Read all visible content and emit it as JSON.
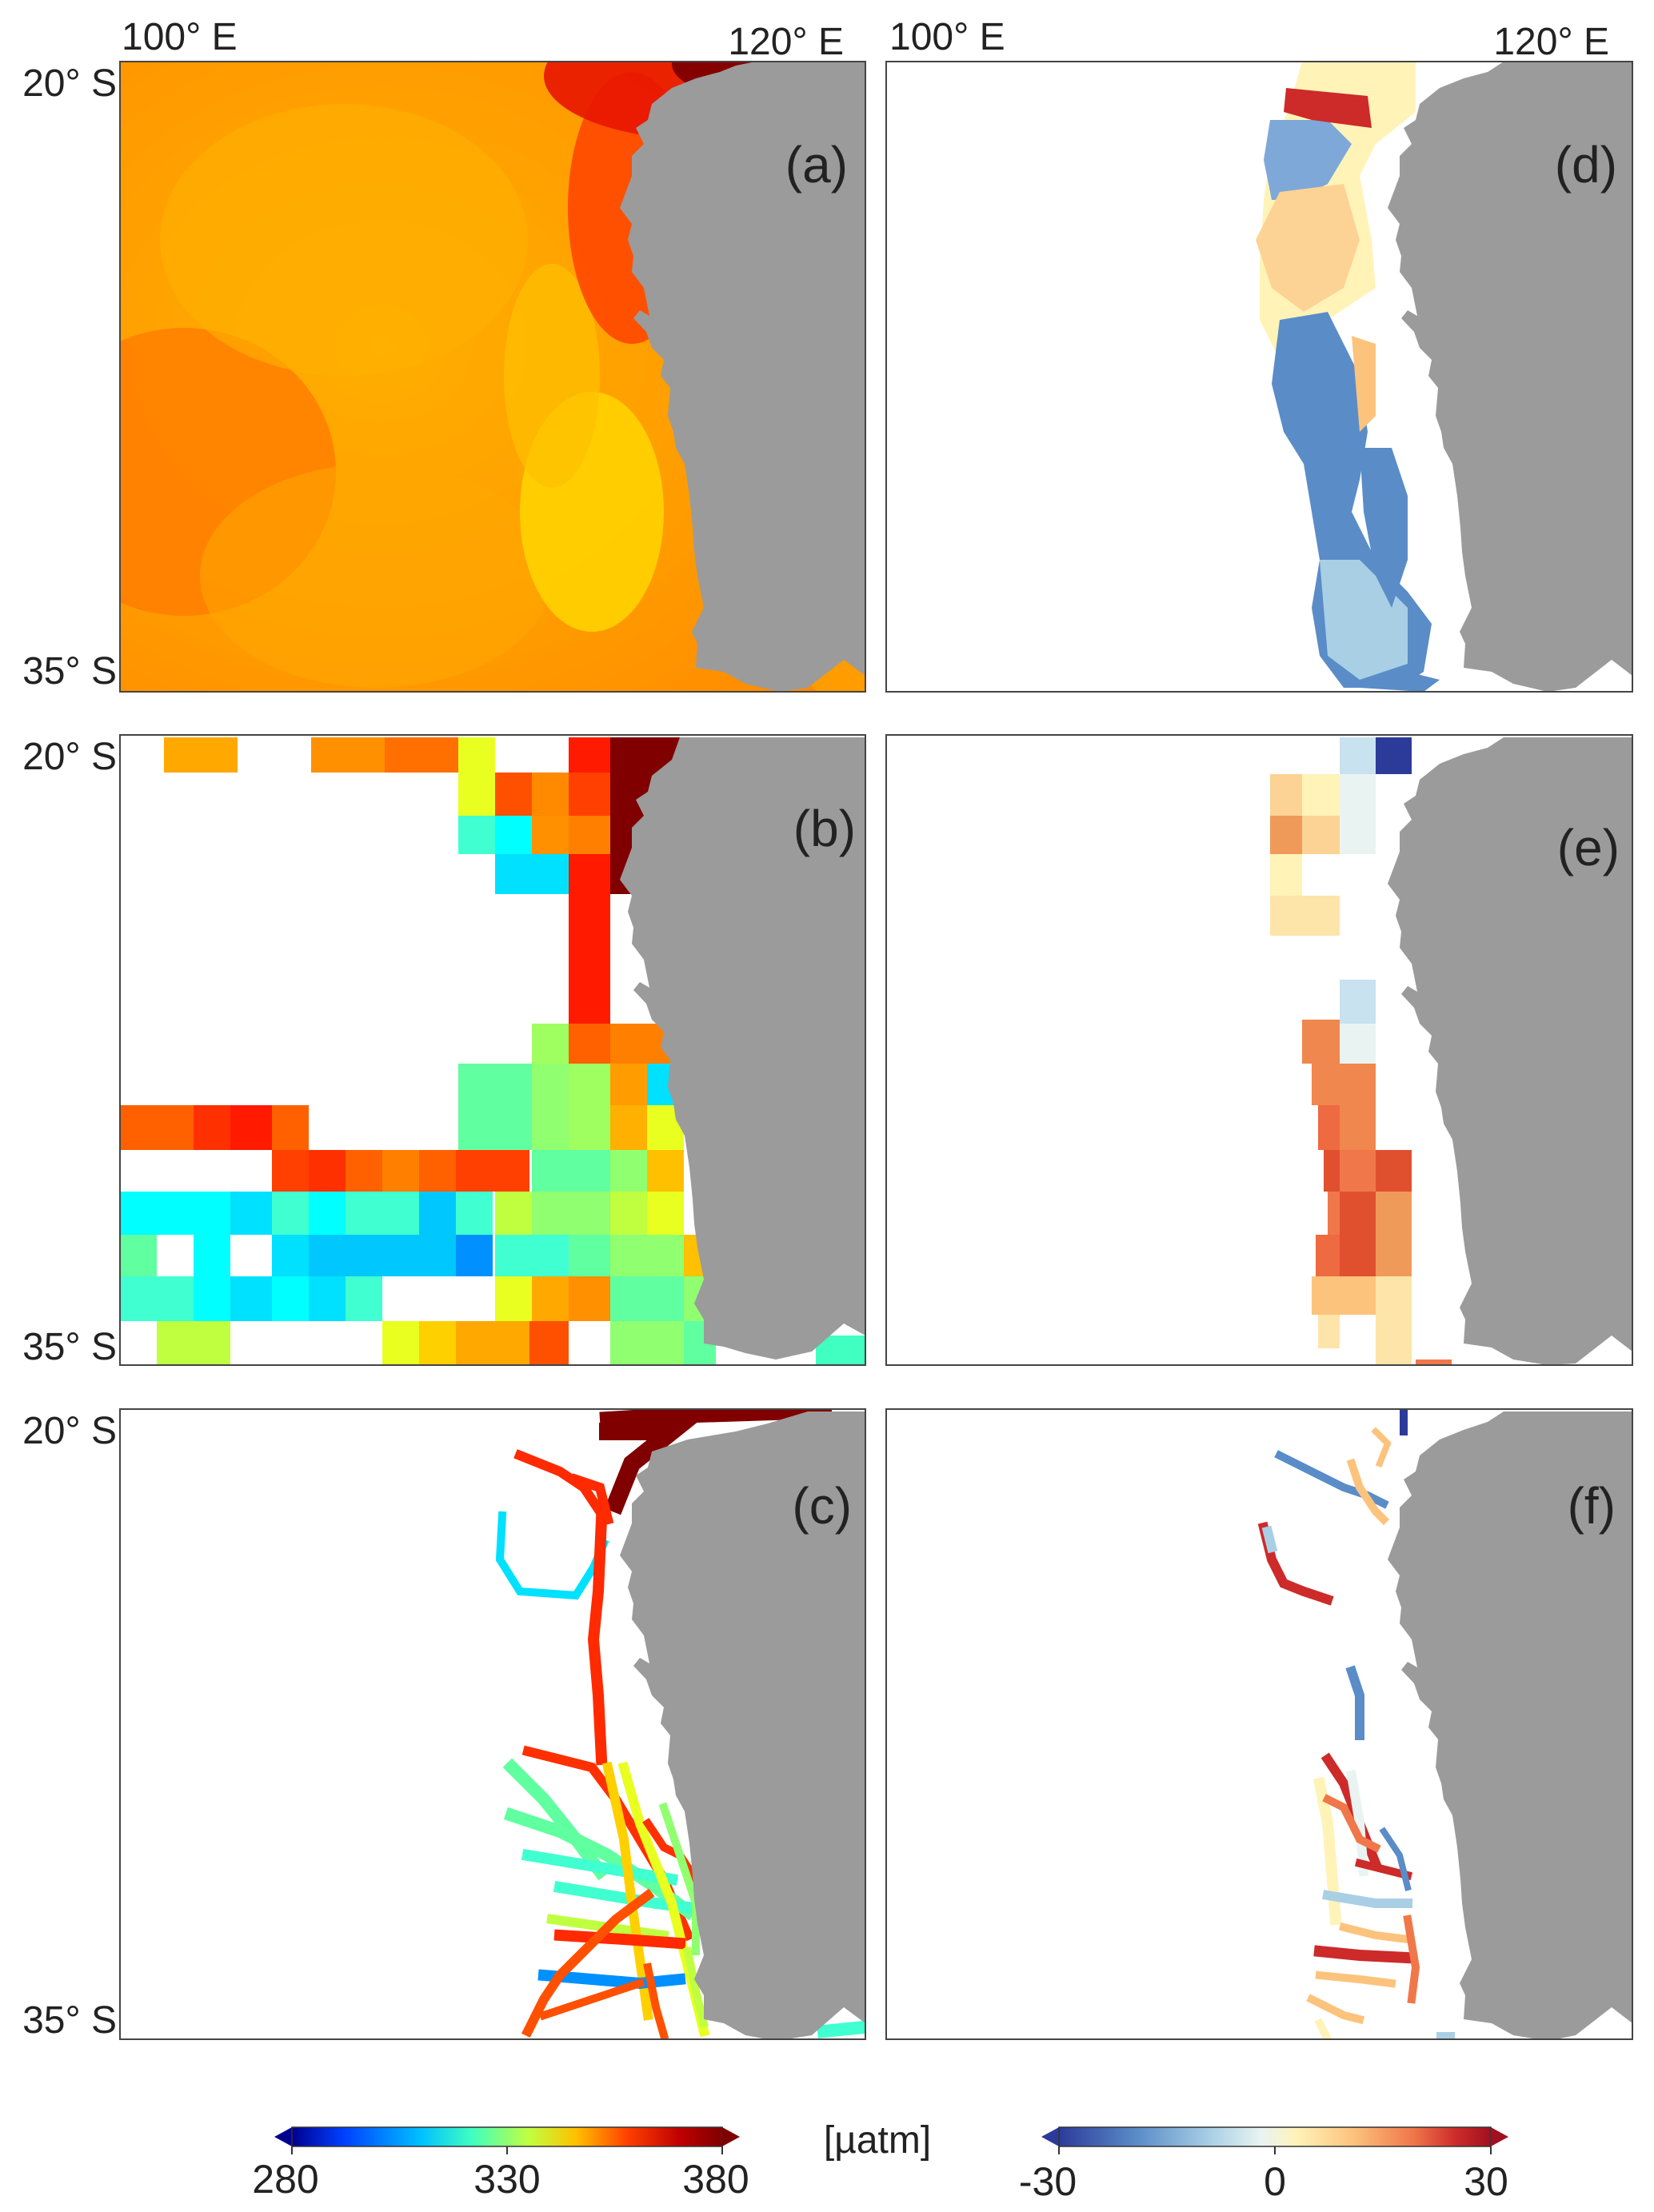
{
  "axis_labels": {
    "lon_left": "100° E",
    "lon_right": "120° E",
    "lat_top": "20° S",
    "lat_bottom": "35° S"
  },
  "panels": [
    {
      "id": "a",
      "label": "(a)",
      "scale": "pco2"
    },
    {
      "id": "b",
      "label": "(b)",
      "scale": "pco2"
    },
    {
      "id": "c",
      "label": "(c)",
      "scale": "pco2"
    },
    {
      "id": "d",
      "label": "(d)",
      "scale": "diff"
    },
    {
      "id": "e",
      "label": "(e)",
      "scale": "diff"
    },
    {
      "id": "f",
      "label": "(f)",
      "scale": "diff"
    }
  ],
  "colorbars": {
    "pco2": {
      "min": 280,
      "max": 380,
      "ticks": [
        "280",
        "330",
        "380"
      ]
    },
    "diff": {
      "min": -30,
      "max": 30,
      "ticks": [
        "-30",
        "0",
        "30"
      ]
    },
    "unit": "[µatm]"
  },
  "colors": {
    "land": "#9b9b9b",
    "frame": "#444444",
    "pco2_scale": [
      "#00008f",
      "#0040ff",
      "#00c0ff",
      "#40ffc0",
      "#c0ff40",
      "#ffc000",
      "#ff4000",
      "#c00000",
      "#800000"
    ],
    "diff_scale": [
      "#2c3b9a",
      "#5a8cc8",
      "#a9cfe5",
      "#e9f4f2",
      "#fff3b8",
      "#fcc37d",
      "#f0774a",
      "#cd2a2a",
      "#a01020"
    ]
  }
}
